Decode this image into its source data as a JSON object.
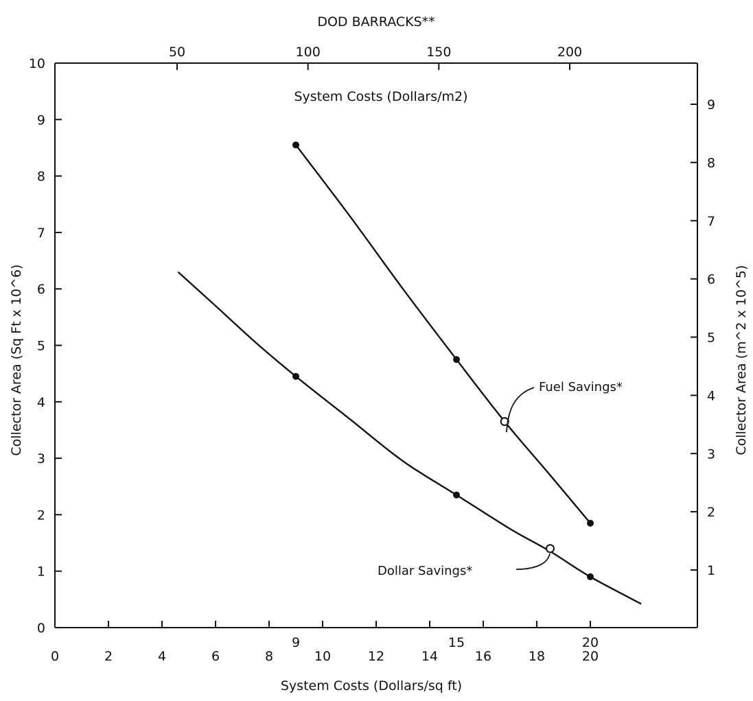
{
  "chart_data": {
    "type": "line",
    "top_title": "DOD BARRACKS**",
    "inner_title": "System Costs (Dollars/m2)",
    "xlabel": "System Costs (Dollars/sq ft)",
    "ylabel": "Collector Area (Sq Ft x 10^6)",
    "ylabel_right": "Collector Area (m^2 x 10^5)",
    "xlim": [
      0,
      24
    ],
    "ylim": [
      0,
      10
    ],
    "x_ticks": [
      0,
      2,
      4,
      6,
      8,
      10,
      12,
      14,
      16,
      18,
      20
    ],
    "x_ticks_extra": [
      9,
      15,
      20
    ],
    "y_ticks": [
      0,
      1,
      2,
      3,
      4,
      5,
      6,
      7,
      8,
      9,
      10
    ],
    "top_ticks": [
      50,
      100,
      150,
      200
    ],
    "right_ticks": [
      1,
      2,
      3,
      4,
      5,
      6,
      7,
      8,
      9
    ],
    "grid": false,
    "series": [
      {
        "name": "Fuel Savings*",
        "points": [
          [
            9,
            8.55
          ],
          [
            15,
            4.75
          ],
          [
            20,
            1.85
          ]
        ],
        "curve": [
          [
            9,
            8.55
          ],
          [
            11,
            7.3
          ],
          [
            13,
            6.0
          ],
          [
            15,
            4.75
          ],
          [
            16.8,
            3.65
          ],
          [
            18.5,
            2.7
          ],
          [
            20,
            1.85
          ]
        ],
        "label_marker": [
          16.8,
          3.65
        ]
      },
      {
        "name": "Dollar Savings*",
        "points": [
          [
            9,
            4.45
          ],
          [
            15,
            2.35
          ],
          [
            20,
            0.9
          ]
        ],
        "curve": [
          [
            4.6,
            6.3
          ],
          [
            6,
            5.7
          ],
          [
            7.5,
            5.05
          ],
          [
            9,
            4.45
          ],
          [
            11,
            3.7
          ],
          [
            13,
            2.95
          ],
          [
            15,
            2.35
          ],
          [
            17,
            1.75
          ],
          [
            18.5,
            1.35
          ],
          [
            20,
            0.9
          ],
          [
            21.9,
            0.42
          ]
        ],
        "label_marker": [
          18.5,
          1.4
        ]
      }
    ]
  }
}
